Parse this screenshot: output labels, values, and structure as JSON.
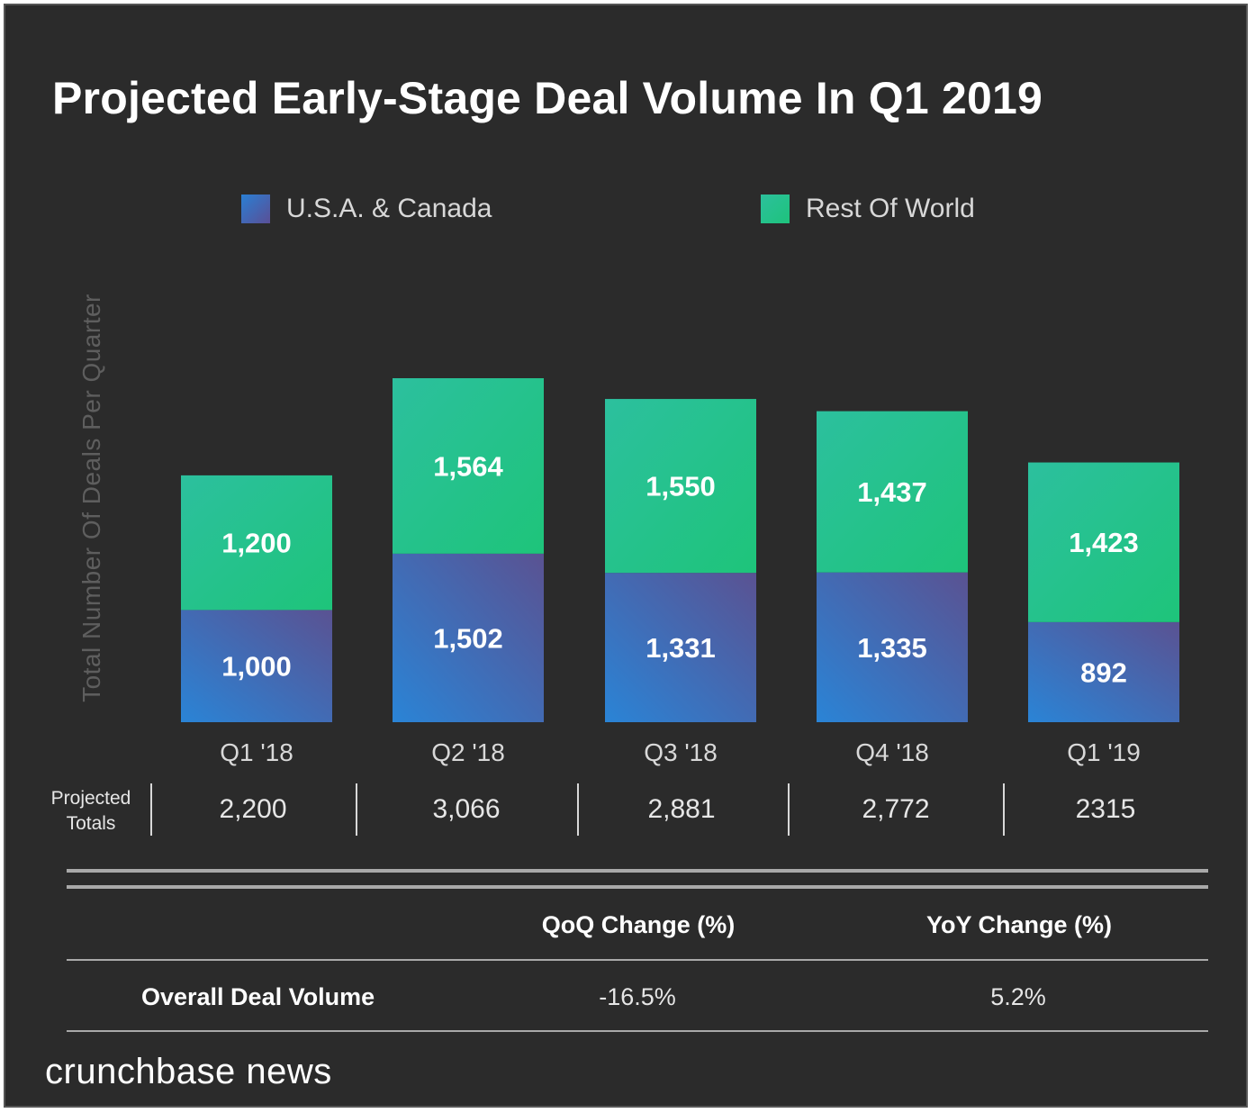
{
  "title": "Projected Early-Stage Deal Volume In Q1 2019",
  "legend": [
    {
      "label": "U.S.A. & Canada",
      "color": "#3d6fb8"
    },
    {
      "label": "Rest Of World",
      "color": "#22c48a"
    }
  ],
  "chart_data": {
    "type": "bar",
    "stacked": true,
    "title": "Projected Early-Stage Deal Volume In Q1 2019",
    "ylabel": "Total Number Of Deals Per Quarter",
    "xlabel": "",
    "categories": [
      "Q1 '18",
      "Q2 '18",
      "Q3 '18",
      "Q4 '18",
      "Q1 '19"
    ],
    "series": [
      {
        "name": "U.S.A. & Canada",
        "values": [
          1000,
          1502,
          1331,
          1335,
          892
        ],
        "labels": [
          "1,000",
          "1,502",
          "1,331",
          "1,335",
          "892"
        ]
      },
      {
        "name": "Rest Of World",
        "values": [
          1200,
          1564,
          1550,
          1437,
          1423
        ],
        "labels": [
          "1,200",
          "1,564",
          "1,550",
          "1,437",
          "1,423"
        ]
      }
    ],
    "ylim": [
      0,
      3066
    ],
    "grid": false,
    "legend_position": "top"
  },
  "totals": {
    "label": "Projected Totals",
    "values": [
      "2,200",
      "3,066",
      "2,881",
      "2,772",
      "2315"
    ]
  },
  "table": {
    "headers": [
      "QoQ Change (%)",
      "YoY Change (%)"
    ],
    "row_label": "Overall Deal Volume",
    "values": [
      "-16.5%",
      "5.2%"
    ]
  },
  "brand": "crunchbase news"
}
